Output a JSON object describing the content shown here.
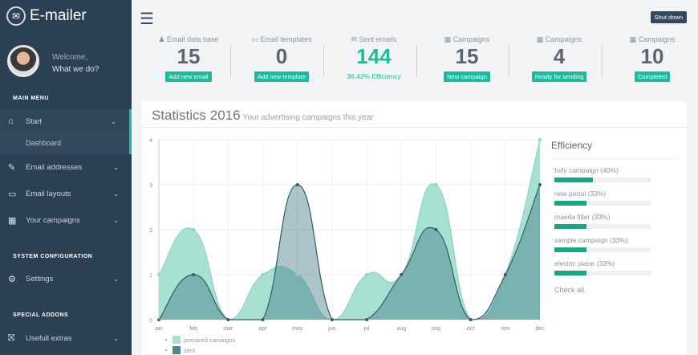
{
  "app": {
    "title": "E-mailer"
  },
  "user": {
    "greeting": "Welcome,",
    "subtitle": "What we do?"
  },
  "sidebar": {
    "sections": [
      "MAIN MENU",
      "SYSTEM CONFIGURATION",
      "SPECIAL ADDONS"
    ],
    "items": [
      {
        "label": "Start",
        "icon": "home-icon"
      },
      {
        "label": "Email addresses",
        "icon": "edit-icon"
      },
      {
        "label": "Email layouts",
        "icon": "monitor-icon"
      },
      {
        "label": "Your campaigns",
        "icon": "calendar-icon"
      },
      {
        "label": "Settings",
        "icon": "cogs-icon"
      },
      {
        "label": "Usefull extras",
        "icon": "gift-icon"
      }
    ],
    "subitem": "Dashboard"
  },
  "topbar": {
    "shutdown": "Shut down"
  },
  "stats": [
    {
      "label": "Email data base",
      "value": "15",
      "button": "Add new email"
    },
    {
      "label": "Email templates",
      "value": "0",
      "button": "Add new template"
    },
    {
      "label": "Sent emails",
      "value": "144",
      "note": "36,42% Efficiency"
    },
    {
      "label": "Campaigns",
      "value": "15",
      "button": "New campaign"
    },
    {
      "label": "Campaigns",
      "value": "4",
      "button": "Ready for sending"
    },
    {
      "label": "Campaigns",
      "value": "10",
      "button": "Completed"
    }
  ],
  "panel": {
    "title": "Statistics 2016",
    "subtitle": "Your advertising campaigns this year"
  },
  "efficiency": {
    "title": "Efficiency",
    "items": [
      {
        "label": "foify campaign (40%)",
        "value": 40
      },
      {
        "label": "new portal (33%)",
        "value": 33
      },
      {
        "label": "maeda filter (33%)",
        "value": 33
      },
      {
        "label": "sample campaign (33%)",
        "value": 33
      },
      {
        "label": "electric plane (33%)",
        "value": 33
      }
    ],
    "check_all": "Check all."
  },
  "chart_data": {
    "type": "area",
    "categories": [
      "jan",
      "feb",
      "mar",
      "apr",
      "may",
      "jun",
      "jul",
      "aug",
      "sep",
      "oct",
      "nov",
      "dec"
    ],
    "series": [
      {
        "name": "prepared camaigns",
        "values": [
          1,
          2,
          0,
          1,
          1,
          0,
          1,
          1,
          3,
          0,
          1,
          4
        ],
        "color": "#a8e0d2"
      },
      {
        "name": "sent",
        "values": [
          0,
          1,
          0,
          0,
          3,
          0,
          0,
          1,
          2,
          0,
          1,
          3
        ],
        "color": "#4a8790"
      }
    ],
    "ylim": [
      0,
      4
    ],
    "yticks": [
      0,
      1,
      2,
      3,
      4
    ],
    "grid": true,
    "legend": "bottom-left"
  }
}
